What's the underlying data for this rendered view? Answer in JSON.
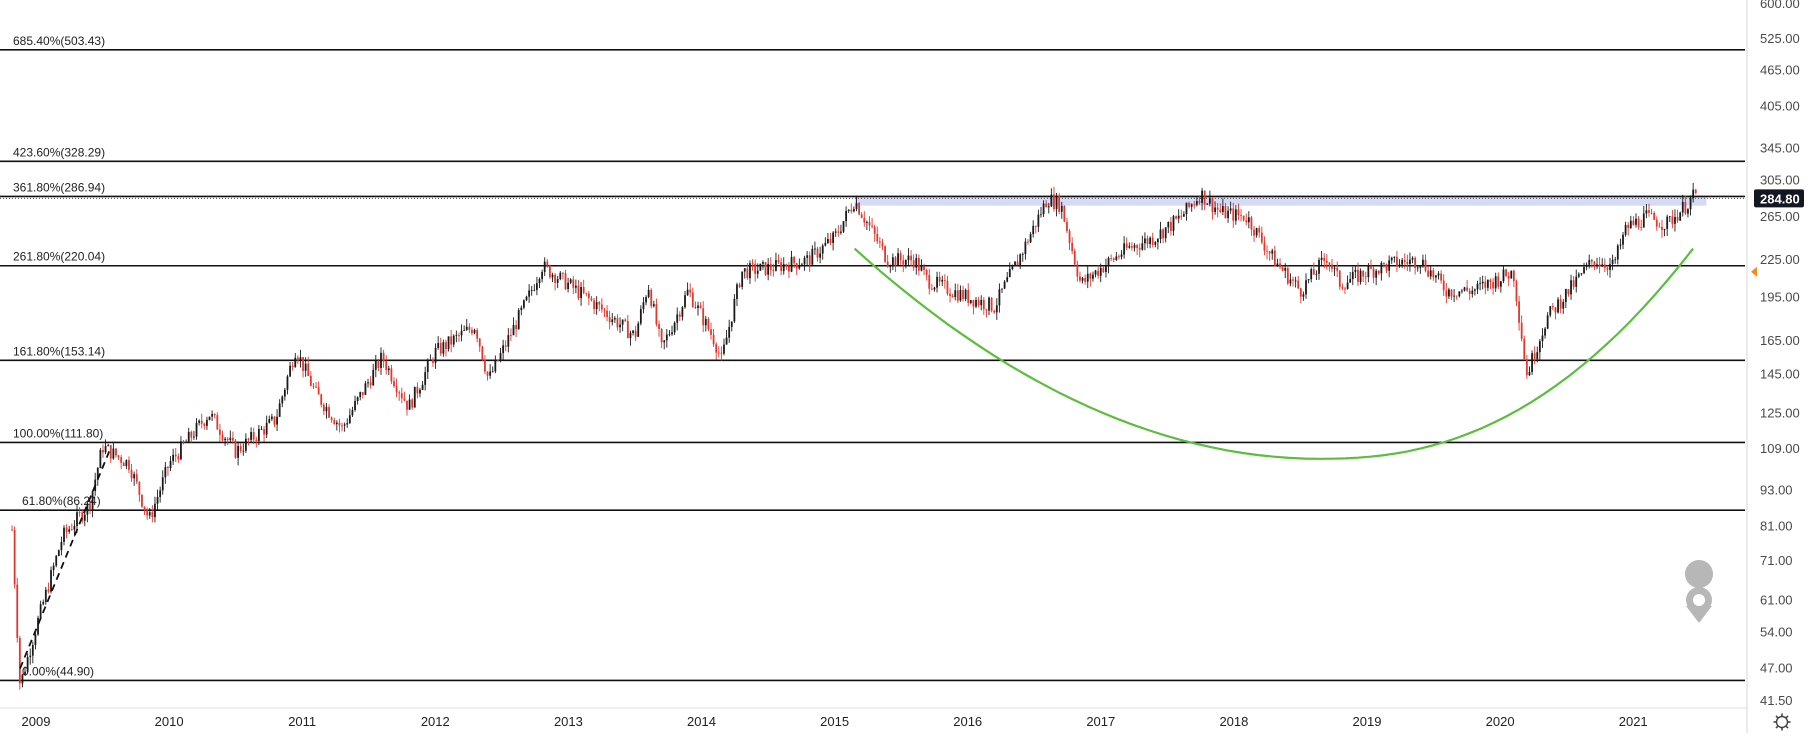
{
  "chart_data": {
    "type": "candlestick",
    "y_scale": "log",
    "ylim": [
      41.5,
      600
    ],
    "y_ticks": [
      "600.00",
      "525.00",
      "465.00",
      "405.00",
      "345.00",
      "305.00",
      "265.00",
      "225.00",
      "195.00",
      "165.00",
      "145.00",
      "125.00",
      "109.00",
      "93.00",
      "81.00",
      "71.00",
      "61.00",
      "54.00",
      "47.00",
      "41.50"
    ],
    "x_labels": [
      "2009",
      "2010",
      "2011",
      "2012",
      "2013",
      "2014",
      "2015",
      "2016",
      "2017",
      "2018",
      "2019",
      "2020",
      "2021"
    ],
    "x_range": [
      2008.82,
      2021.55
    ],
    "current_price": {
      "value": 284.8,
      "label": "284.80"
    },
    "fib_levels": [
      {
        "value": 503.43,
        "label": "685.40%(503.43)"
      },
      {
        "value": 328.29,
        "label": "423.60%(328.29)"
      },
      {
        "value": 286.94,
        "label": "361.80%(286.94)"
      },
      {
        "value": 220.04,
        "label": "261.80%(220.04)"
      },
      {
        "value": 153.14,
        "label": "161.80%(153.14)"
      },
      {
        "value": 111.8,
        "label": "100.00%(111.80)"
      },
      {
        "value": 86.24,
        "label": "61.80%(86.24)"
      },
      {
        "value": 44.9,
        "label": "0.00%(44.90)"
      }
    ],
    "resistance_zone": {
      "x_start": 2015.15,
      "x_end": 2021.55,
      "y_low": 277,
      "y_high": 288
    },
    "cup_arc": {
      "x_start": 2015.15,
      "x_mid": 2018.65,
      "x_end": 2021.45,
      "y_start": 235,
      "y_mid": 105,
      "y_end": 235
    },
    "trend_line": {
      "x_start": 2008.88,
      "x_end": 2009.55,
      "y_start": 47,
      "y_end": 108
    },
    "price_path": [
      [
        2008.82,
        80
      ],
      [
        2008.88,
        44
      ],
      [
        2009.0,
        55
      ],
      [
        2009.2,
        78
      ],
      [
        2009.4,
        88
      ],
      [
        2009.5,
        110
      ],
      [
        2009.7,
        103
      ],
      [
        2009.85,
        83
      ],
      [
        2010.0,
        103
      ],
      [
        2010.3,
        125
      ],
      [
        2010.5,
        108
      ],
      [
        2010.8,
        122
      ],
      [
        2010.95,
        160
      ],
      [
        2011.1,
        135
      ],
      [
        2011.3,
        118
      ],
      [
        2011.6,
        155
      ],
      [
        2011.8,
        128
      ],
      [
        2012.0,
        158
      ],
      [
        2012.3,
        175
      ],
      [
        2012.4,
        142
      ],
      [
        2012.7,
        195
      ],
      [
        2012.8,
        220
      ],
      [
        2013.0,
        205
      ],
      [
        2013.2,
        190
      ],
      [
        2013.5,
        168
      ],
      [
        2013.6,
        205
      ],
      [
        2013.7,
        160
      ],
      [
        2013.9,
        200
      ],
      [
        2014.1,
        165
      ],
      [
        2014.15,
        153
      ],
      [
        2014.3,
        215
      ],
      [
        2014.5,
        218
      ],
      [
        2014.8,
        225
      ],
      [
        2015.0,
        245
      ],
      [
        2015.15,
        283
      ],
      [
        2015.4,
        225
      ],
      [
        2015.6,
        225
      ],
      [
        2015.7,
        208
      ],
      [
        2016.0,
        195
      ],
      [
        2016.2,
        188
      ],
      [
        2016.4,
        230
      ],
      [
        2016.6,
        285
      ],
      [
        2016.7,
        278
      ],
      [
        2016.85,
        205
      ],
      [
        2017.0,
        218
      ],
      [
        2017.2,
        235
      ],
      [
        2017.4,
        245
      ],
      [
        2017.6,
        265
      ],
      [
        2017.75,
        290
      ],
      [
        2017.9,
        270
      ],
      [
        2018.1,
        265
      ],
      [
        2018.3,
        225
      ],
      [
        2018.5,
        200
      ],
      [
        2018.7,
        228
      ],
      [
        2018.8,
        205
      ],
      [
        2019.0,
        215
      ],
      [
        2019.2,
        222
      ],
      [
        2019.4,
        225
      ],
      [
        2019.6,
        200
      ],
      [
        2019.8,
        200
      ],
      [
        2020.0,
        210
      ],
      [
        2020.1,
        215
      ],
      [
        2020.2,
        145
      ],
      [
        2020.35,
        180
      ],
      [
        2020.5,
        198
      ],
      [
        2020.7,
        225
      ],
      [
        2020.85,
        220
      ],
      [
        2020.95,
        255
      ],
      [
        2021.1,
        265
      ],
      [
        2021.25,
        258
      ],
      [
        2021.4,
        278
      ],
      [
        2021.47,
        290
      ]
    ]
  }
}
